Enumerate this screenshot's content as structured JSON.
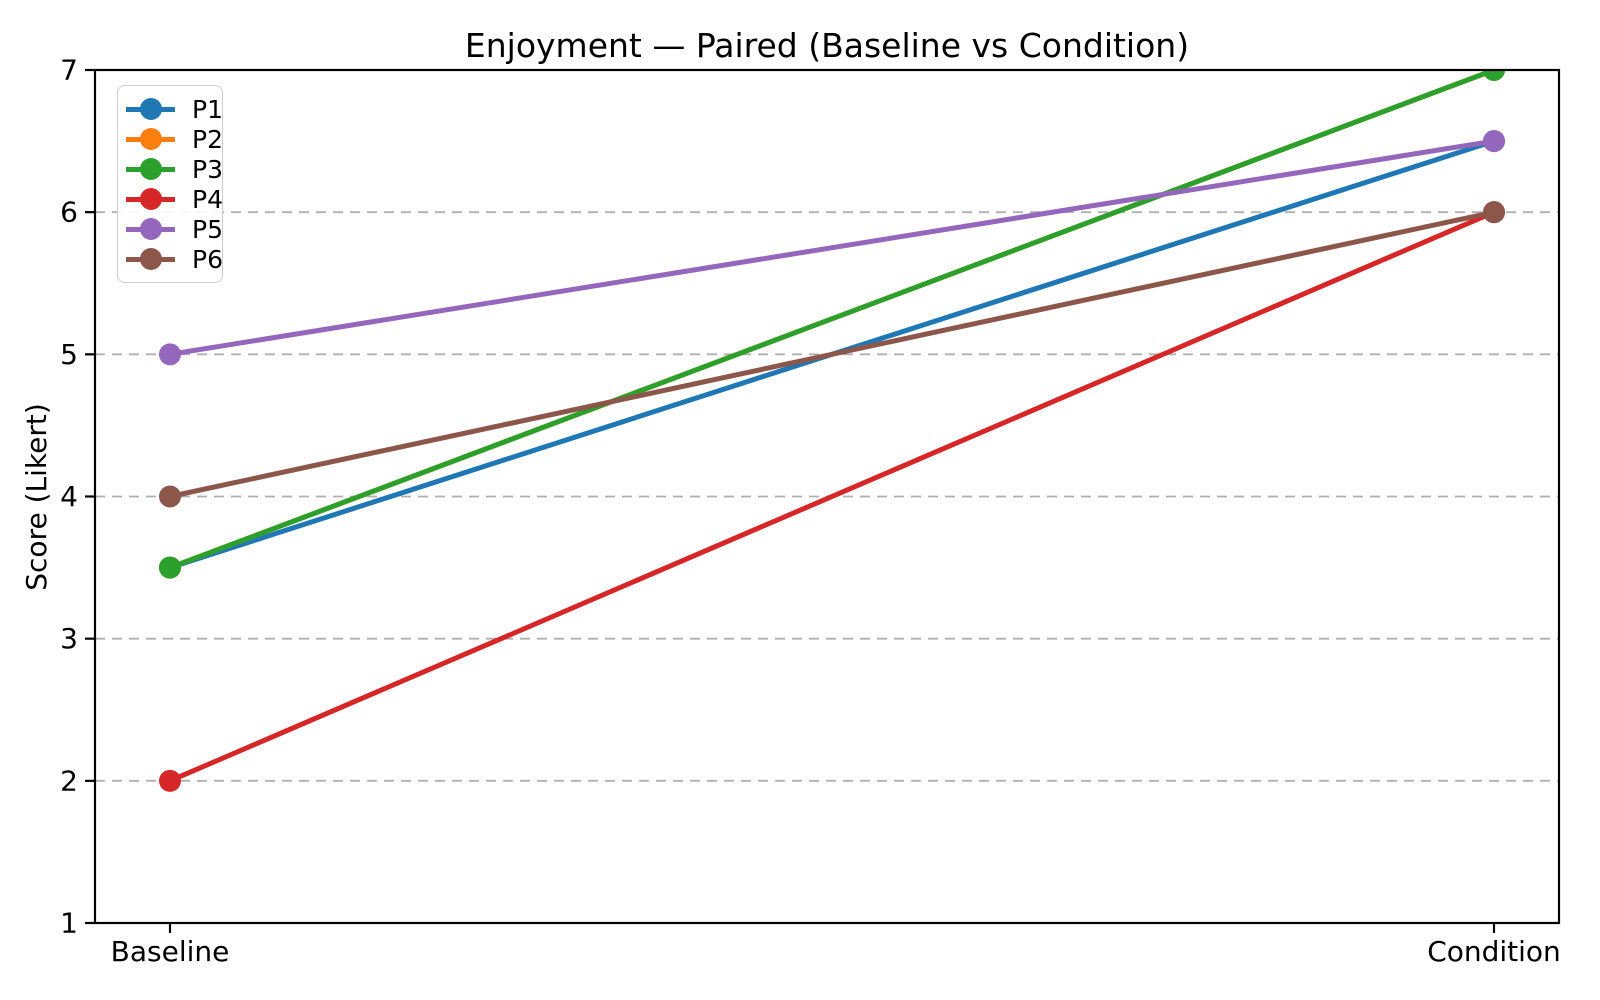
{
  "chart_data": {
    "type": "line",
    "subtype": "paired-slope",
    "title": "Enjoyment — Paired (Baseline vs Condition)",
    "xlabel": "",
    "ylabel": "Score (Likert)",
    "categories": [
      "Baseline",
      "Condition"
    ],
    "yticks": [
      1,
      2,
      3,
      4,
      5,
      6,
      7
    ],
    "ylim": [
      1,
      7
    ],
    "grid": "horizontal-dashed",
    "grid_color": "#b0b0b0",
    "legend_position": "upper-left",
    "series": [
      {
        "name": "P1",
        "color": "#1f77b4",
        "values": [
          3.5,
          6.5
        ]
      },
      {
        "name": "P2",
        "color": "#ff7f0e",
        "values": [
          3.5,
          7.0
        ]
      },
      {
        "name": "P3",
        "color": "#2ca02c",
        "values": [
          3.5,
          7.0
        ]
      },
      {
        "name": "P4",
        "color": "#d62728",
        "values": [
          2.0,
          6.0
        ]
      },
      {
        "name": "P5",
        "color": "#9467bd",
        "values": [
          5.0,
          6.5
        ]
      },
      {
        "name": "P6",
        "color": "#8c564b",
        "values": [
          4.0,
          6.0
        ]
      }
    ]
  }
}
